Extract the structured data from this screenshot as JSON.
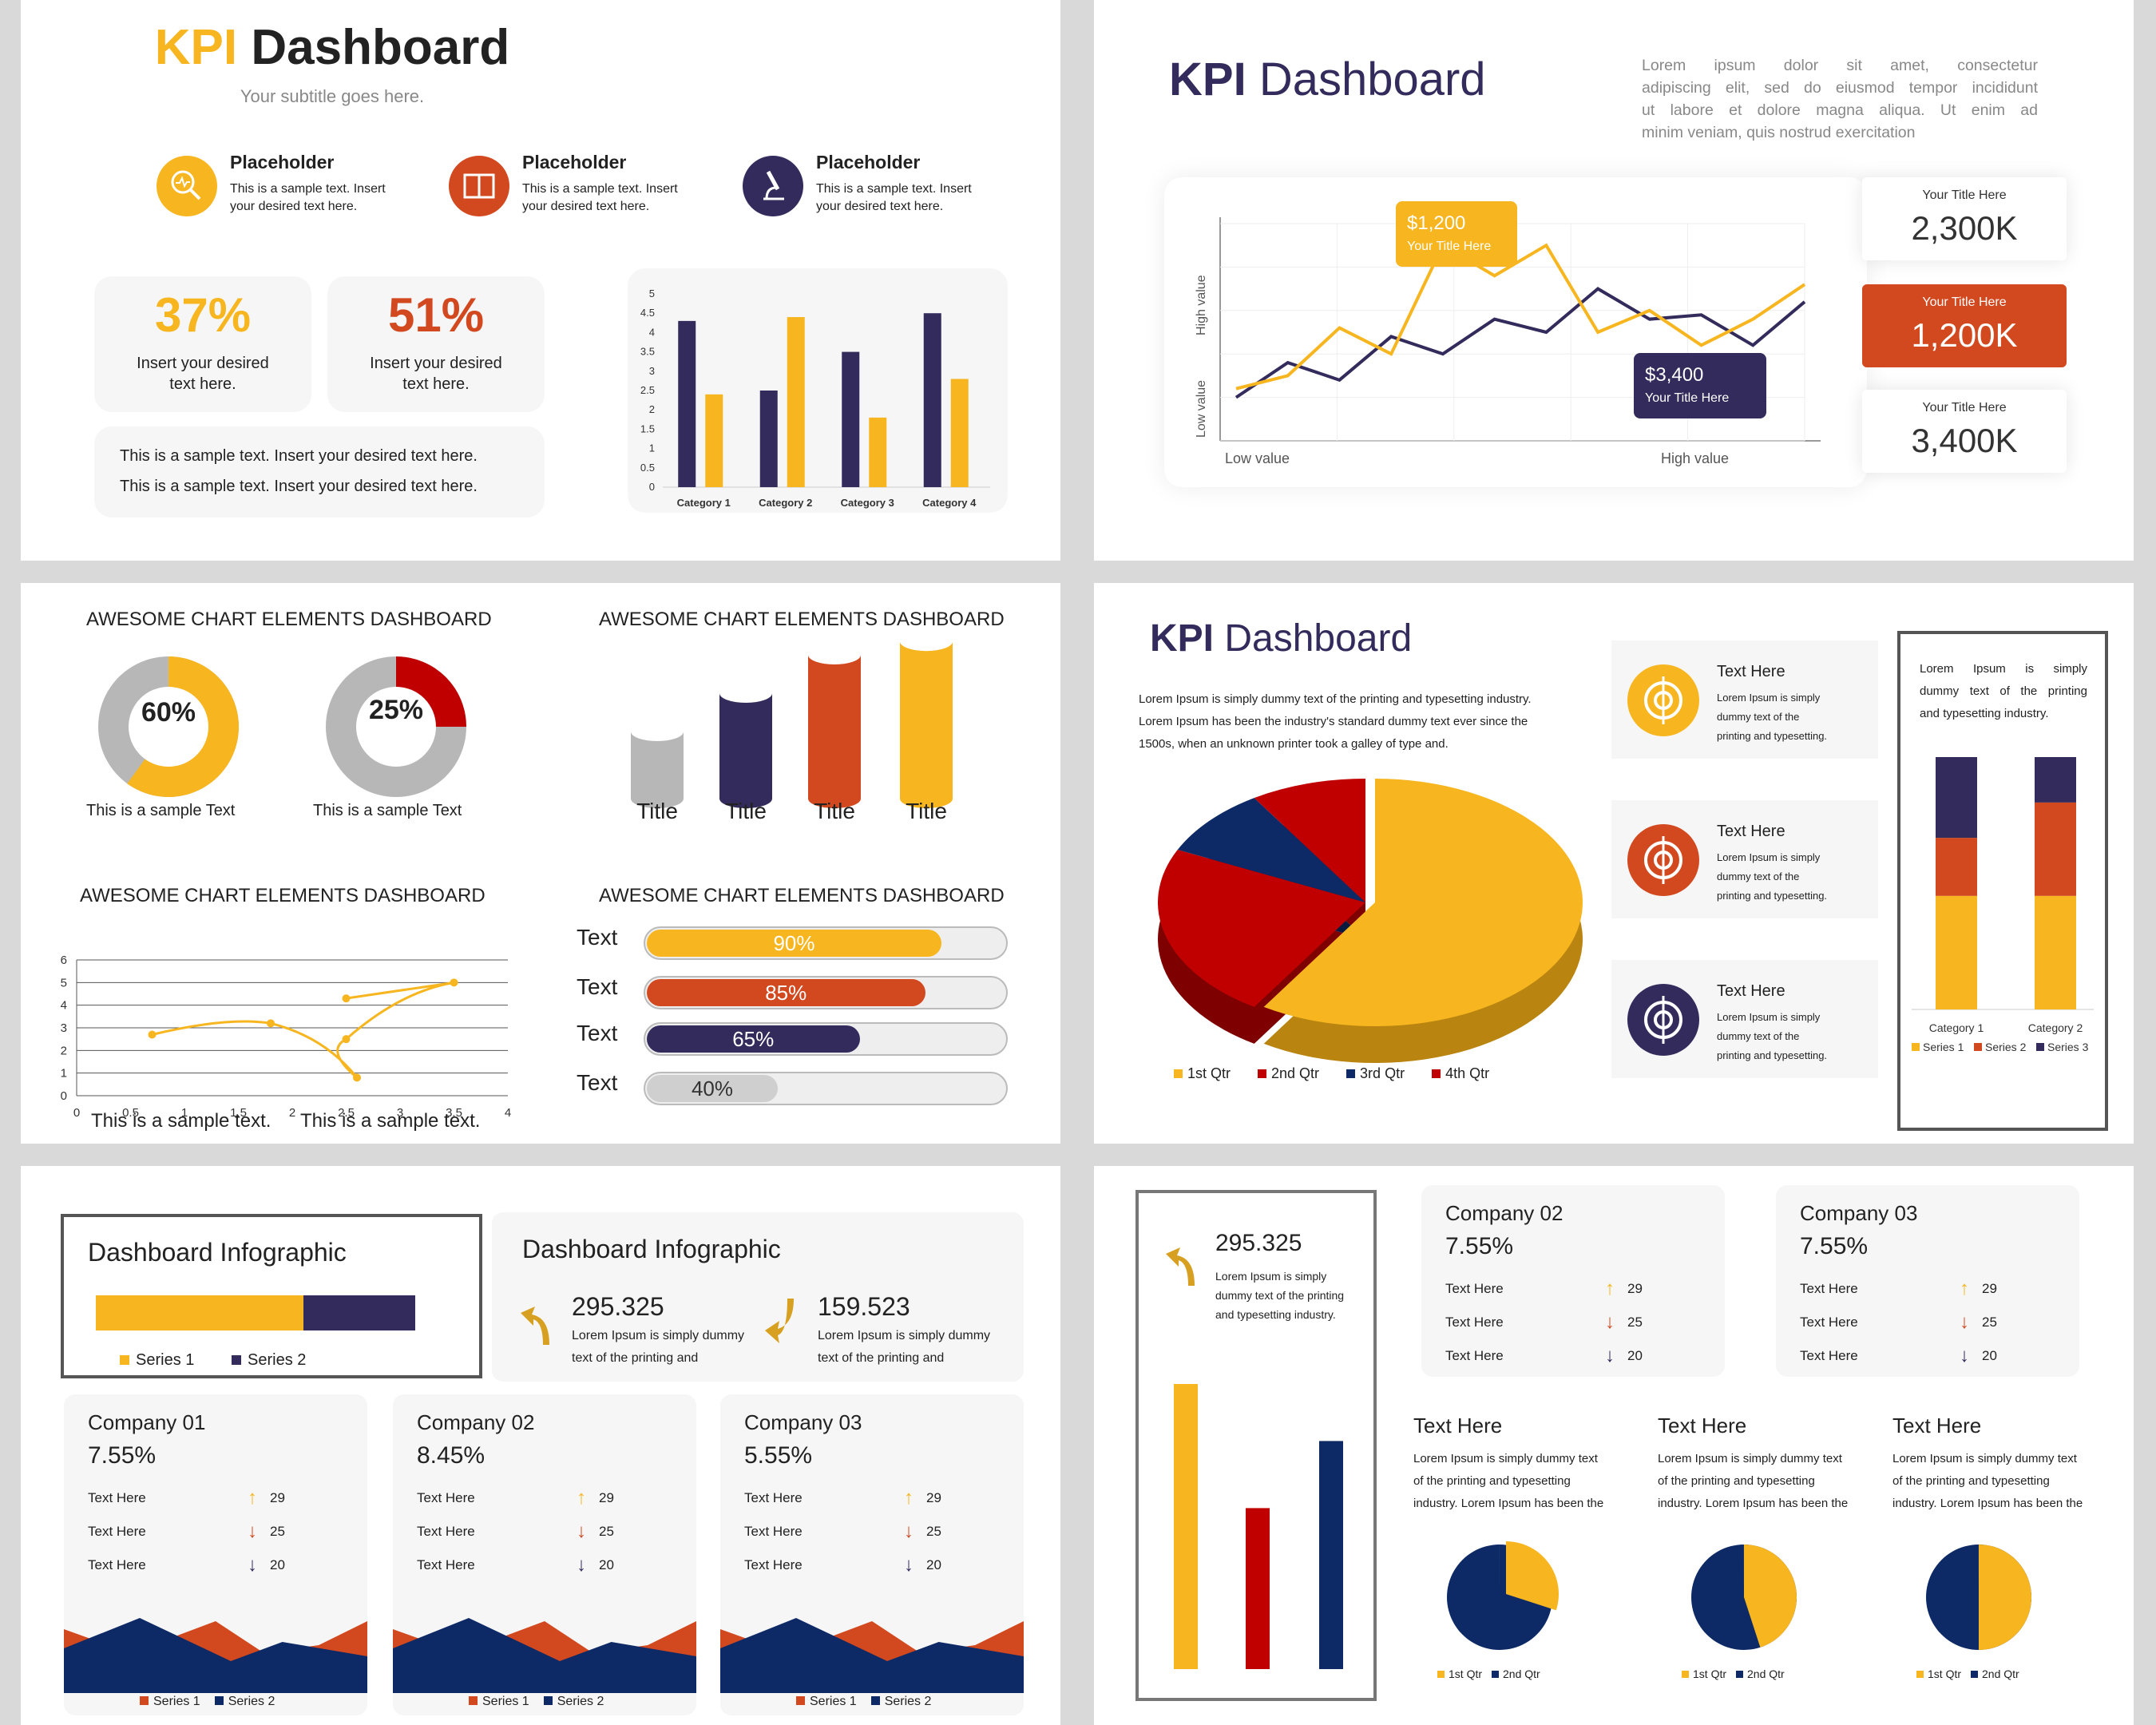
{
  "colors": {
    "yellow": "#f7b61f",
    "red": "#d2481f",
    "navy": "#332b5c",
    "gray": "#b7b7b7",
    "darkred": "#c00000",
    "blue": "#0d2a66"
  },
  "s1": {
    "title_a": "KPI",
    "title_b": "Dashboard",
    "subtitle": "Your subtitle goes here.",
    "items": [
      {
        "icon": "search-icon",
        "head": "Placeholder",
        "l1": "This is a sample text. Insert",
        "l2": "your desired text here."
      },
      {
        "icon": "book-icon",
        "head": "Placeholder",
        "l1": "This is a sample text. Insert",
        "l2": "your desired text here."
      },
      {
        "icon": "microscope-icon",
        "head": "Placeholder",
        "l1": "This is a sample text. Insert",
        "l2": "your desired text here."
      }
    ],
    "stats": [
      {
        "value": "37%",
        "l1": "Insert your desired",
        "l2": "text here."
      },
      {
        "value": "51%",
        "l1": "Insert your desired",
        "l2": "text here."
      }
    ],
    "notes": [
      "This is a sample text. Insert your desired text here.",
      "This is a sample text. Insert your desired text here."
    ]
  },
  "s2": {
    "title_a": "KPI",
    "title_b": "Dashboard",
    "para": [
      "Lorem ipsum dolor sit amet, consectetur",
      "adipiscing elit, sed do eiusmod tempor incididunt",
      "ut labore et dolore magna aliqua. Ut enim ad",
      "minim veniam, quis nostrud exercitation"
    ],
    "callout1": {
      "value": "$1,200",
      "label": "Your Title Here"
    },
    "callout2": {
      "value": "$3,400",
      "label": "Your Title Here"
    },
    "ylabel_top": "High value",
    "ylabel_bottom": "Low value",
    "xlabel_left": "Low value",
    "xlabel_right": "High value",
    "kpis": [
      {
        "label": "Your Title Here",
        "value": "2,300K"
      },
      {
        "label": "Your Title Here",
        "value": "1,200K"
      },
      {
        "label": "Your Title Here",
        "value": "3,400K"
      }
    ]
  },
  "s3": {
    "heading1": "AWESOME CHART ELEMENTS DASHBOARD",
    "heading2": "AWESOME CHART ELEMENTS DASHBOARD",
    "heading3": "AWESOME CHART ELEMENTS DASHBOARD",
    "heading4": "AWESOME CHART ELEMENTS DASHBOARD",
    "donuts": [
      {
        "value": "60%",
        "caption": "This is a sample Text"
      },
      {
        "value": "25%",
        "caption": "This is a sample Text"
      }
    ],
    "cylinders": [
      "Title",
      "Title",
      "Title",
      "Title"
    ],
    "captions": [
      "This is a sample text.",
      "This is a sample text."
    ],
    "progress": [
      {
        "label": "Text",
        "value": "90%"
      },
      {
        "label": "Text",
        "value": "85%"
      },
      {
        "label": "Text",
        "value": "65%"
      },
      {
        "label": "Text",
        "value": "40%"
      }
    ]
  },
  "s4": {
    "title_a": "KPI",
    "title_b": "Dashboard",
    "para": [
      "Lorem Ipsum is simply dummy text of the printing and typesetting industry.",
      "Lorem Ipsum has been the industry's standard dummy text ever since the",
      "1500s, when an unknown printer took a galley of type and."
    ],
    "items": [
      {
        "icon": "target-icon",
        "head": "Text Here",
        "l1": "Lorem  Ipsum  is  simply",
        "l2": "dummy   text   of   the",
        "l3": "printing and typesetting."
      },
      {
        "icon": "hourglass-icon",
        "head": "Text Here",
        "l1": "Lorem  Ipsum  is  simply",
        "l2": "dummy   text   of   the",
        "l3": "printing and typesetting."
      },
      {
        "icon": "crosshair-icon",
        "head": "Text Here",
        "l1": "Lorem  Ipsum  is  simply",
        "l2": "dummy   text   of   the",
        "l3": "printing and typesetting."
      }
    ],
    "box_text": [
      "Lorem    Ipsum    is    simply",
      "dummy text of the printing",
      "and typesetting industry."
    ],
    "pie_legend": [
      "1st Qtr",
      "2nd Qtr",
      "3rd Qtr",
      "4th Qtr"
    ],
    "stack_legend": [
      "Series 1",
      "Series 2",
      "Series 3"
    ]
  },
  "s5": {
    "box1_title": "Dashboard Infographic",
    "box2_title": "Dashboard Infographic",
    "legend": [
      "Series 1",
      "Series 2"
    ],
    "up": {
      "value": "295.325",
      "l1": "Lorem Ipsum is simply dummy",
      "l2": "text of the printing and"
    },
    "down": {
      "value": "159.523",
      "l1": "Lorem Ipsum is simply dummy",
      "l2": "text of the printing and"
    },
    "companies": [
      {
        "name": "Company 01",
        "pct": "7.55%",
        "rows": [
          {
            "t": "Text Here",
            "v": "29"
          },
          {
            "t": "Text Here",
            "v": "25"
          },
          {
            "t": "Text Here",
            "v": "20"
          }
        ]
      },
      {
        "name": "Company 02",
        "pct": "8.45%",
        "rows": [
          {
            "t": "Text Here",
            "v": "29"
          },
          {
            "t": "Text Here",
            "v": "25"
          },
          {
            "t": "Text Here",
            "v": "20"
          }
        ]
      },
      {
        "name": "Company 03",
        "pct": "5.55%",
        "rows": [
          {
            "t": "Text Here",
            "v": "29"
          },
          {
            "t": "Text Here",
            "v": "25"
          },
          {
            "t": "Text Here",
            "v": "20"
          }
        ]
      }
    ]
  },
  "s6": {
    "left": {
      "value": "295.325",
      "l1": "Lorem Ipsum is simply",
      "l2": "dummy text of the printing",
      "l3": "and typesetting industry."
    },
    "companies": [
      {
        "name": "Company 02",
        "pct": "7.55%",
        "rows": [
          {
            "t": "Text Here",
            "v": "29"
          },
          {
            "t": "Text Here",
            "v": "25"
          },
          {
            "t": "Text Here",
            "v": "20"
          }
        ]
      },
      {
        "name": "Company 03",
        "pct": "7.55%",
        "rows": [
          {
            "t": "Text Here",
            "v": "29"
          },
          {
            "t": "Text Here",
            "v": "25"
          },
          {
            "t": "Text Here",
            "v": "20"
          }
        ]
      }
    ],
    "texts": [
      {
        "head": "Text Here",
        "l1": "Lorem Ipsum is simply dummy text",
        "l2": "of the printing and typesetting",
        "l3": "industry. Lorem Ipsum has been the"
      },
      {
        "head": "Text Here",
        "l1": "Lorem Ipsum is simply dummy text",
        "l2": "of the printing and typesetting",
        "l3": "industry. Lorem Ipsum has been the"
      },
      {
        "head": "Text Here",
        "l1": "Lorem Ipsum is simply dummy text",
        "l2": "of the printing and typesetting",
        "l3": "industry. Lorem Ipsum has been the"
      }
    ],
    "pie_legend": [
      "1st Qtr",
      "2nd Qtr"
    ]
  },
  "chart_data": [
    {
      "type": "bar",
      "categories": [
        "Category 1",
        "Category 2",
        "Category 3",
        "Category 4"
      ],
      "series": [
        {
          "values": [
            4.3,
            2.5,
            3.5,
            4.5
          ]
        },
        {
          "values": [
            2.4,
            4.4,
            1.8,
            2.8
          ]
        }
      ],
      "ylim": [
        0,
        5
      ],
      "yticks": [
        "5",
        "4.5",
        "4",
        "3.5",
        "3",
        "2.5",
        "2",
        "1.5",
        "1",
        "0.5",
        "0"
      ]
    },
    {
      "type": "line",
      "series": [
        {
          "values": [
            1.0,
            1.8,
            1.4,
            2.4,
            2.0,
            2.8,
            2.5,
            3.5,
            2.8,
            2.9,
            2.2,
            3.2
          ]
        },
        {
          "values": [
            1.2,
            1.5,
            2.6,
            2.0,
            4.5,
            3.8,
            4.5,
            2.5,
            3.0,
            2.2,
            2.8,
            3.6
          ]
        }
      ]
    },
    {
      "type": "pie",
      "values": [
        60,
        40
      ]
    },
    {
      "type": "pie",
      "values": [
        25,
        75
      ]
    },
    {
      "type": "bar",
      "values": [
        35,
        55,
        75,
        82
      ]
    },
    {
      "type": "scatter",
      "x": [
        0.7,
        1.8,
        2.5,
        2.6,
        2.5,
        3.5
      ],
      "y": [
        2.7,
        3.2,
        4.3,
        0.8,
        2.5,
        5.0
      ],
      "xlim": [
        0,
        4
      ],
      "ylim": [
        0,
        6
      ],
      "xticks": [
        "0",
        "0.5",
        "1",
        "1.5",
        "2",
        "2.5",
        "3",
        "3.5",
        "4"
      ],
      "yticks": [
        "0",
        "1",
        "2",
        "3",
        "4",
        "5",
        "6"
      ]
    },
    {
      "type": "bar",
      "categories": [
        "Text",
        "Text",
        "Text",
        "Text"
      ],
      "values": [
        90,
        85,
        65,
        40
      ]
    },
    {
      "type": "pie",
      "categories": [
        "1st Qtr",
        "2nd Qtr",
        "3rd Qtr",
        "4th Qtr"
      ],
      "values": [
        59,
        23,
        9,
        9
      ]
    },
    {
      "type": "bar",
      "categories": [
        "Category 1",
        "Category 2"
      ],
      "series": [
        {
          "name": "Series 1",
          "values": [
            45,
            45
          ]
        },
        {
          "name": "Series 2",
          "values": [
            23,
            37
          ]
        },
        {
          "name": "Series 3",
          "values": [
            32,
            18
          ]
        }
      ]
    },
    {
      "type": "bar",
      "series": [
        {
          "name": "Series 1",
          "values": [
            65
          ]
        },
        {
          "name": "Series 2",
          "values": [
            35
          ]
        }
      ]
    },
    {
      "type": "bar",
      "values": [
        85,
        48,
        68
      ]
    },
    {
      "type": "pie",
      "categories": [
        "1st Qtr",
        "2nd Qtr"
      ],
      "values": [
        30,
        70
      ]
    },
    {
      "type": "pie",
      "categories": [
        "1st Qtr",
        "2nd Qtr"
      ],
      "values": [
        45,
        55
      ]
    },
    {
      "type": "pie",
      "categories": [
        "1st Qtr",
        "2nd Qtr"
      ],
      "values": [
        50,
        50
      ]
    }
  ]
}
